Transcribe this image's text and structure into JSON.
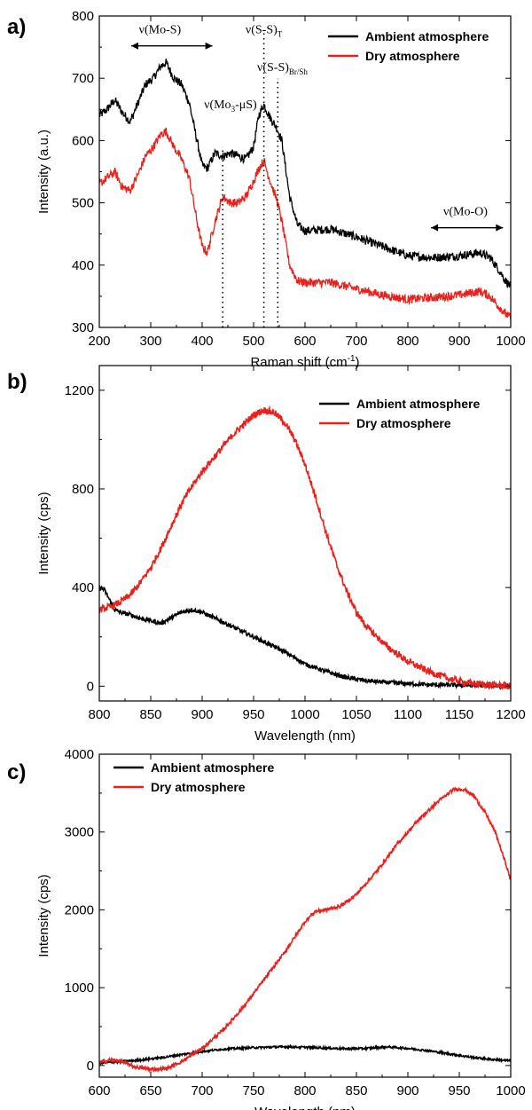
{
  "colors": {
    "ambient": "#000000",
    "dry": "#e8211c"
  },
  "chart_data": [
    {
      "panel": "a)",
      "type": "line",
      "xlabel": "Raman shift (cm",
      "xlabel_sup": "-1",
      "xlabel_end": ")",
      "ylabel": "Intensity (a.u.)",
      "xlim": [
        200,
        1000
      ],
      "ylim": [
        300,
        800
      ],
      "xticks": [
        200,
        300,
        400,
        500,
        600,
        700,
        800,
        900,
        1000
      ],
      "yticks": [
        300,
        400,
        500,
        600,
        700,
        800
      ],
      "legend": {
        "position": "top-right"
      },
      "series": [
        {
          "name": "Ambient atmosphere",
          "color": "#000000",
          "x": [
            200,
            215,
            230,
            245,
            260,
            275,
            290,
            305,
            320,
            330,
            345,
            360,
            375,
            390,
            400,
            410,
            425,
            440,
            455,
            470,
            485,
            500,
            510,
            520,
            530,
            545,
            555,
            570,
            585,
            600,
            650,
            700,
            750,
            800,
            850,
            900,
            940,
            960,
            975,
            990,
            1000
          ],
          "y": [
            640,
            650,
            665,
            645,
            630,
            660,
            690,
            700,
            720,
            725,
            700,
            690,
            660,
            600,
            560,
            555,
            580,
            575,
            580,
            575,
            570,
            590,
            640,
            658,
            640,
            620,
            600,
            510,
            465,
            455,
            458,
            445,
            430,
            415,
            412,
            415,
            420,
            412,
            395,
            375,
            365
          ]
        },
        {
          "name": "Dry atmosphere",
          "color": "#e8211c",
          "x": [
            200,
            215,
            230,
            245,
            260,
            275,
            290,
            305,
            320,
            330,
            345,
            360,
            375,
            390,
            400,
            410,
            425,
            440,
            455,
            470,
            485,
            500,
            510,
            520,
            530,
            545,
            555,
            570,
            585,
            600,
            650,
            700,
            750,
            800,
            850,
            900,
            940,
            960,
            975,
            990,
            1000
          ],
          "y": [
            530,
            540,
            550,
            525,
            520,
            545,
            575,
            590,
            610,
            615,
            590,
            570,
            540,
            470,
            430,
            420,
            470,
            510,
            500,
            500,
            510,
            535,
            555,
            568,
            540,
            505,
            470,
            400,
            375,
            372,
            372,
            362,
            352,
            345,
            348,
            352,
            358,
            350,
            335,
            322,
            315
          ]
        }
      ],
      "annotations": [
        {
          "text": "ν(Mo-S)",
          "x": 318,
          "y": 772,
          "type": "text"
        },
        {
          "text": "ν(S-S)",
          "sub": "T",
          "x": 520,
          "y": 772,
          "type": "text"
        },
        {
          "text": "ν(S-S)",
          "sub": "Br/Sh",
          "x": 556,
          "y": 712,
          "type": "text"
        },
        {
          "text": "ν(Mo",
          "sub": "3",
          "rest": "-μS)",
          "x": 455,
          "y": 652,
          "type": "text"
        },
        {
          "text": "ν(Mo-O)",
          "x": 912,
          "y": 480,
          "type": "text"
        }
      ],
      "arrows": [
        {
          "x1": 262,
          "x2": 420,
          "y": 752
        },
        {
          "x1": 845,
          "x2": 985,
          "y": 460
        }
      ],
      "vlines": [
        {
          "x": 440,
          "y1": 300,
          "y2": 590
        },
        {
          "x": 520,
          "y1": 300,
          "y2": 778
        },
        {
          "x": 547,
          "y1": 300,
          "y2": 700
        }
      ]
    },
    {
      "panel": "b)",
      "type": "line",
      "xlabel": "Wavelength (nm)",
      "ylabel": "Intensity (cps)",
      "xlim": [
        800,
        1200
      ],
      "ylim": [
        -60,
        1300
      ],
      "xticks": [
        800,
        850,
        900,
        950,
        1000,
        1050,
        1100,
        1150,
        1200
      ],
      "yticks": [
        0,
        400,
        800,
        1200
      ],
      "legend": {
        "position": "top-right"
      },
      "series": [
        {
          "name": "Ambient atmosphere",
          "color": "#000000",
          "x": [
            800,
            805,
            810,
            815,
            820,
            830,
            840,
            860,
            880,
            890,
            900,
            920,
            940,
            960,
            980,
            1000,
            1020,
            1040,
            1060,
            1080,
            1100,
            1120,
            1150,
            1180,
            1200
          ],
          "y": [
            400,
            390,
            350,
            310,
            300,
            290,
            275,
            255,
            300,
            310,
            300,
            260,
            220,
            180,
            140,
            90,
            60,
            35,
            22,
            15,
            10,
            6,
            4,
            2,
            0
          ]
        },
        {
          "name": "Dry atmosphere",
          "color": "#e8211c",
          "x": [
            800,
            810,
            820,
            830,
            840,
            850,
            860,
            870,
            880,
            890,
            900,
            910,
            920,
            930,
            940,
            950,
            960,
            970,
            980,
            990,
            1000,
            1010,
            1020,
            1030,
            1040,
            1050,
            1060,
            1080,
            1100,
            1120,
            1140,
            1160,
            1180,
            1200
          ],
          "y": [
            310,
            320,
            340,
            370,
            420,
            480,
            560,
            650,
            740,
            810,
            870,
            920,
            970,
            1020,
            1060,
            1100,
            1120,
            1110,
            1070,
            1000,
            900,
            770,
            630,
            500,
            390,
            300,
            240,
            160,
            100,
            60,
            30,
            12,
            5,
            0
          ]
        }
      ]
    },
    {
      "panel": "c)",
      "type": "line",
      "xlabel": "Wavelength (nm)",
      "ylabel": "Intensity (cps)",
      "xlim": [
        600,
        1000
      ],
      "ylim": [
        -150,
        4000
      ],
      "xticks": [
        600,
        650,
        700,
        750,
        800,
        850,
        900,
        950,
        1000
      ],
      "yticks": [
        0,
        1000,
        2000,
        3000,
        4000
      ],
      "legend": {
        "position": "top-left"
      },
      "series": [
        {
          "name": "Ambient atmosphere",
          "color": "#000000",
          "x": [
            600,
            620,
            640,
            660,
            680,
            700,
            720,
            750,
            780,
            800,
            820,
            840,
            860,
            880,
            900,
            920,
            940,
            960,
            980,
            1000
          ],
          "y": [
            30,
            50,
            70,
            100,
            140,
            180,
            210,
            230,
            240,
            235,
            225,
            215,
            220,
            240,
            220,
            190,
            150,
            110,
            80,
            60
          ]
        },
        {
          "name": "Dry atmosphere",
          "color": "#e8211c",
          "x": [
            600,
            610,
            620,
            635,
            650,
            665,
            680,
            700,
            720,
            740,
            760,
            780,
            800,
            810,
            820,
            835,
            850,
            870,
            890,
            910,
            930,
            945,
            955,
            965,
            975,
            985,
            995,
            1000
          ],
          "y": [
            40,
            70,
            60,
            -20,
            -50,
            -40,
            50,
            220,
            450,
            750,
            1100,
            1450,
            1850,
            1980,
            2000,
            2050,
            2200,
            2500,
            2850,
            3150,
            3400,
            3550,
            3550,
            3450,
            3250,
            3000,
            2600,
            2380
          ]
        }
      ]
    }
  ]
}
